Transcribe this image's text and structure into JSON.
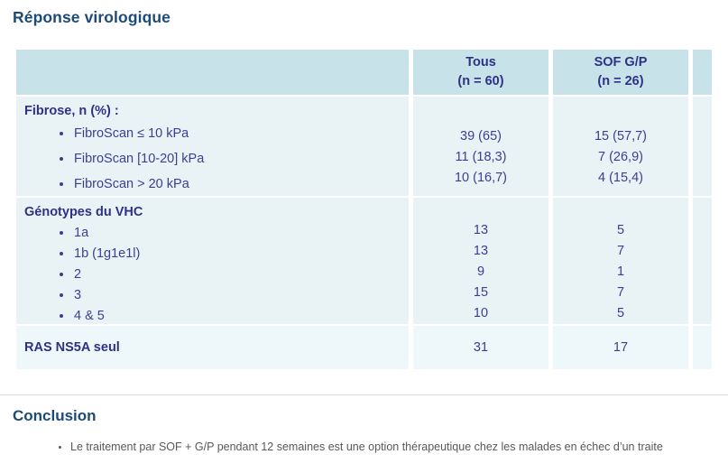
{
  "page": {
    "title": "Réponse virologique"
  },
  "colors": {
    "title_text": "#1c4b79",
    "table_text": "#3a3f93",
    "table_heading_text": "#2e3287",
    "header_bg": "#c7e2e8",
    "row_bg": "#e9f3f6",
    "row_alt_bg": "#eef7f9",
    "conclusion_text": "#595959",
    "divider": "#d9d9d9",
    "page_bg": "#ffffff"
  },
  "table": {
    "header": {
      "col1": {
        "line1": "Tous",
        "line2": "(n = 60)"
      },
      "col2": {
        "line1": "SOF G/P",
        "line2": "(n = 26)"
      }
    },
    "fibrose": {
      "label": "Fibrose, n (%) :",
      "items": [
        {
          "label": "FibroScan ≤ 10 kPa",
          "tous": "39 (65)",
          "sof": "15 (57,7)"
        },
        {
          "label": "FibroScan [10-20] kPa",
          "tous": "11 (18,3)",
          "sof": "7 (26,9)"
        },
        {
          "label": "FibroScan > 20 kPa",
          "tous": "10 (16,7)",
          "sof": "4 (15,4)"
        }
      ]
    },
    "genotypes": {
      "label": "Génotypes du VHC",
      "items": [
        {
          "label": "1a",
          "tous": "13",
          "sof": "5"
        },
        {
          "label": "1b (1g1e1l)",
          "tous": "13",
          "sof": "7"
        },
        {
          "label": "2",
          "tous": "9",
          "sof": "1"
        },
        {
          "label": "3",
          "tous": "15",
          "sof": "7"
        },
        {
          "label": "4 & 5",
          "tous": "10",
          "sof": "5"
        }
      ]
    },
    "ras": {
      "label": "RAS NS5A seul",
      "tous": "31",
      "sof": "17"
    }
  },
  "conclusion": {
    "title": "Conclusion",
    "bullet": "Le traitement par SOF + G/P pendant 12 semaines est une option thérapeutique chez les malades en échec d’un traite"
  }
}
